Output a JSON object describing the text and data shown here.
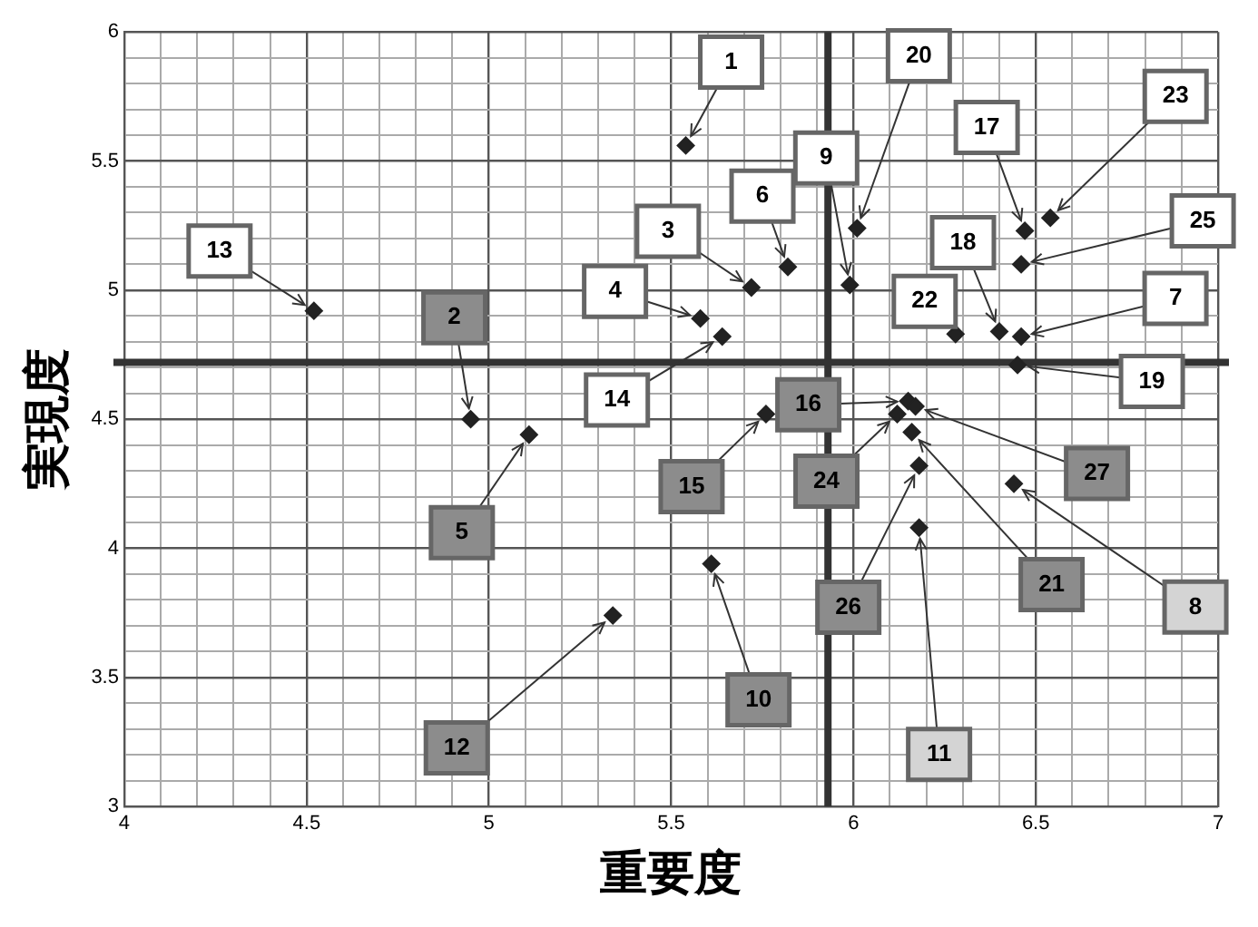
{
  "chart_data": {
    "type": "scatter",
    "xlabel": "重要度",
    "ylabel": "実現度",
    "x": [
      5.54,
      4.95,
      5.72,
      5.58,
      5.11,
      5.82,
      6.46,
      6.44,
      5.99,
      5.61,
      6.18,
      5.34,
      4.52,
      5.64,
      5.76,
      6.15,
      6.47,
      6.4,
      6.45,
      6.01,
      6.16,
      6.28,
      6.54,
      6.12,
      6.46,
      6.18,
      6.17
    ],
    "series": [
      {
        "color": "#222222",
        "values": [
          5.56,
          4.5,
          5.01,
          4.89,
          4.44,
          5.09,
          4.82,
          4.25,
          5.02,
          3.94,
          4.08,
          3.74,
          4.92,
          4.82,
          4.52,
          4.57,
          5.23,
          4.84,
          4.71,
          5.24,
          4.45,
          4.83,
          5.28,
          4.52,
          5.1,
          4.32,
          4.55
        ]
      }
    ],
    "marker": "diamond",
    "grid": true,
    "xlim": [
      4,
      7
    ],
    "ylim": [
      3,
      6
    ],
    "xticks": [
      4,
      {
        "value": 4.1,
        "label": null
      },
      {
        "value": 4.2,
        "label": null
      },
      {
        "value": 4.3,
        "label": null
      },
      {
        "value": 4.4,
        "label": null
      },
      4.5,
      {
        "value": 4.6,
        "label": null
      },
      {
        "value": 4.7,
        "label": null
      },
      {
        "value": 4.8,
        "label": null
      },
      {
        "value": 4.9,
        "label": null
      },
      5,
      {
        "value": 5.1,
        "label": null
      },
      {
        "value": 5.2,
        "label": null
      },
      {
        "value": 5.3,
        "label": null
      },
      {
        "value": 5.4,
        "label": null
      },
      5.5,
      {
        "value": 5.6,
        "label": null
      },
      {
        "value": 5.7,
        "label": null
      },
      {
        "value": 5.8,
        "label": null
      },
      {
        "value": 5.9,
        "label": null
      },
      6,
      {
        "value": 6.1,
        "label": null
      },
      {
        "value": 6.2,
        "label": null
      },
      {
        "value": 6.3,
        "label": null
      },
      {
        "value": 6.4,
        "label": null
      },
      6.5,
      {
        "value": 6.6,
        "label": null
      },
      {
        "value": 6.7,
        "label": null
      },
      {
        "value": 6.8,
        "label": null
      },
      {
        "value": 6.9,
        "label": null
      },
      7
    ],
    "yticks": [
      3,
      {
        "value": 3.1,
        "label": null
      },
      {
        "value": 3.2,
        "label": null
      },
      {
        "value": 3.3,
        "label": null
      },
      {
        "value": 3.4,
        "label": null
      },
      3.5,
      {
        "value": 3.6,
        "label": null
      },
      {
        "value": 3.7,
        "label": null
      },
      {
        "value": 3.8,
        "label": null
      },
      {
        "value": 3.9,
        "label": null
      },
      4,
      {
        "value": 4.1,
        "label": null
      },
      {
        "value": 4.2,
        "label": null
      },
      {
        "value": 4.3,
        "label": null
      },
      {
        "value": 4.4,
        "label": null
      },
      4.5,
      {
        "value": 4.6,
        "label": null
      },
      {
        "value": 4.7,
        "label": null
      },
      {
        "value": 4.8,
        "label": null
      },
      {
        "value": 4.9,
        "label": null
      },
      5,
      {
        "value": 5.1,
        "label": null
      },
      {
        "value": 5.2,
        "label": null
      },
      {
        "value": 5.3,
        "label": null
      },
      {
        "value": 5.4,
        "label": null
      },
      5.5,
      {
        "value": 5.6,
        "label": null
      },
      {
        "value": 5.7,
        "label": null
      },
      {
        "value": 5.8,
        "label": null
      },
      {
        "value": 5.9,
        "label": null
      },
      6
    ],
    "ref_lines": [
      {
        "axis": "x",
        "value": 5.93,
        "color": "#333333"
      },
      {
        "axis": "y",
        "value": 4.72,
        "color": "#333333"
      }
    ],
    "annotations": [
      {
        "text": "1",
        "x": 5.54,
        "y": 5.56
      },
      {
        "text": "2",
        "x": 4.95,
        "y": 4.5
      },
      {
        "text": "3",
        "x": 5.72,
        "y": 5.01
      },
      {
        "text": "4",
        "x": 5.58,
        "y": 4.89
      },
      {
        "text": "5",
        "x": 5.11,
        "y": 4.44
      },
      {
        "text": "6",
        "x": 5.82,
        "y": 5.09
      },
      {
        "text": "7",
        "x": 6.46,
        "y": 4.82
      },
      {
        "text": "8",
        "x": 6.44,
        "y": 4.25
      },
      {
        "text": "9",
        "x": 5.99,
        "y": 5.02
      },
      {
        "text": "10",
        "x": 5.61,
        "y": 3.94
      },
      {
        "text": "11",
        "x": 6.18,
        "y": 4.08
      },
      {
        "text": "12",
        "x": 5.34,
        "y": 3.74
      },
      {
        "text": "13",
        "x": 4.52,
        "y": 4.92
      },
      {
        "text": "14",
        "x": 5.64,
        "y": 4.82
      },
      {
        "text": "15",
        "x": 5.76,
        "y": 4.52
      },
      {
        "text": "16",
        "x": 6.15,
        "y": 4.57
      },
      {
        "text": "17",
        "x": 6.47,
        "y": 5.23
      },
      {
        "text": "18",
        "x": 6.4,
        "y": 4.84
      },
      {
        "text": "19",
        "x": 6.45,
        "y": 4.71
      },
      {
        "text": "20",
        "x": 6.01,
        "y": 5.24
      },
      {
        "text": "21",
        "x": 6.16,
        "y": 4.45
      },
      {
        "text": "22",
        "x": 6.28,
        "y": 4.83
      },
      {
        "text": "23",
        "x": 6.54,
        "y": 5.28
      },
      {
        "text": "24",
        "x": 6.12,
        "y": 4.52
      },
      {
        "text": "25",
        "x": 6.46,
        "y": 5.1
      },
      {
        "text": "26",
        "x": 6.18,
        "y": 4.32
      },
      {
        "text": "27",
        "x": 6.17,
        "y": 4.55
      }
    ]
  }
}
